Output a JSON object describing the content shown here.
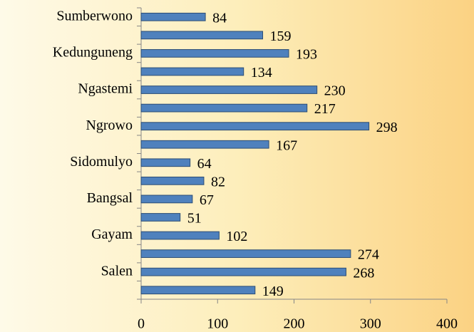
{
  "chart_data": {
    "type": "bar",
    "orientation": "horizontal",
    "categories": [
      "Sumberwono",
      null,
      "Kedunguneng",
      null,
      "Ngastemi",
      null,
      "Ngrowo",
      null,
      "Sidomulyo",
      null,
      "Bangsal",
      null,
      "Gayam",
      null,
      "Salen",
      null
    ],
    "values": [
      84,
      159,
      193,
      134,
      230,
      217,
      298,
      167,
      64,
      82,
      67,
      51,
      102,
      274,
      268,
      149
    ],
    "color": "#4f81bd",
    "xlim": [
      0,
      400
    ],
    "xticks": [
      0,
      100,
      200,
      300,
      400
    ],
    "grid": false
  }
}
